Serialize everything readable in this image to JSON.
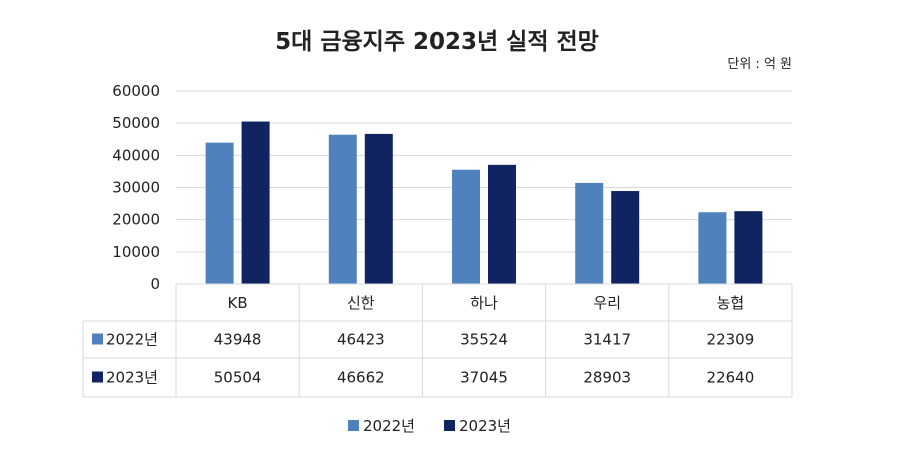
{
  "chart_data": {
    "type": "bar",
    "title": "5대 금융지주 2023년 실적 전망",
    "unit_label": "단위 : 억 원",
    "categories": [
      "KB",
      "신한",
      "하나",
      "우리",
      "농협"
    ],
    "series": [
      {
        "name": "2022년",
        "color": "#4f81bd",
        "values": [
          43948,
          46423,
          35524,
          31417,
          22309
        ]
      },
      {
        "name": "2023년",
        "color": "#0f2460",
        "values": [
          50504,
          46662,
          37045,
          28903,
          22640
        ]
      }
    ],
    "ylim": [
      0,
      60000
    ],
    "yticks": [
      0,
      10000,
      20000,
      30000,
      40000,
      50000,
      60000
    ],
    "grid": true,
    "legend_position": "bottom-center",
    "data_table": true
  }
}
